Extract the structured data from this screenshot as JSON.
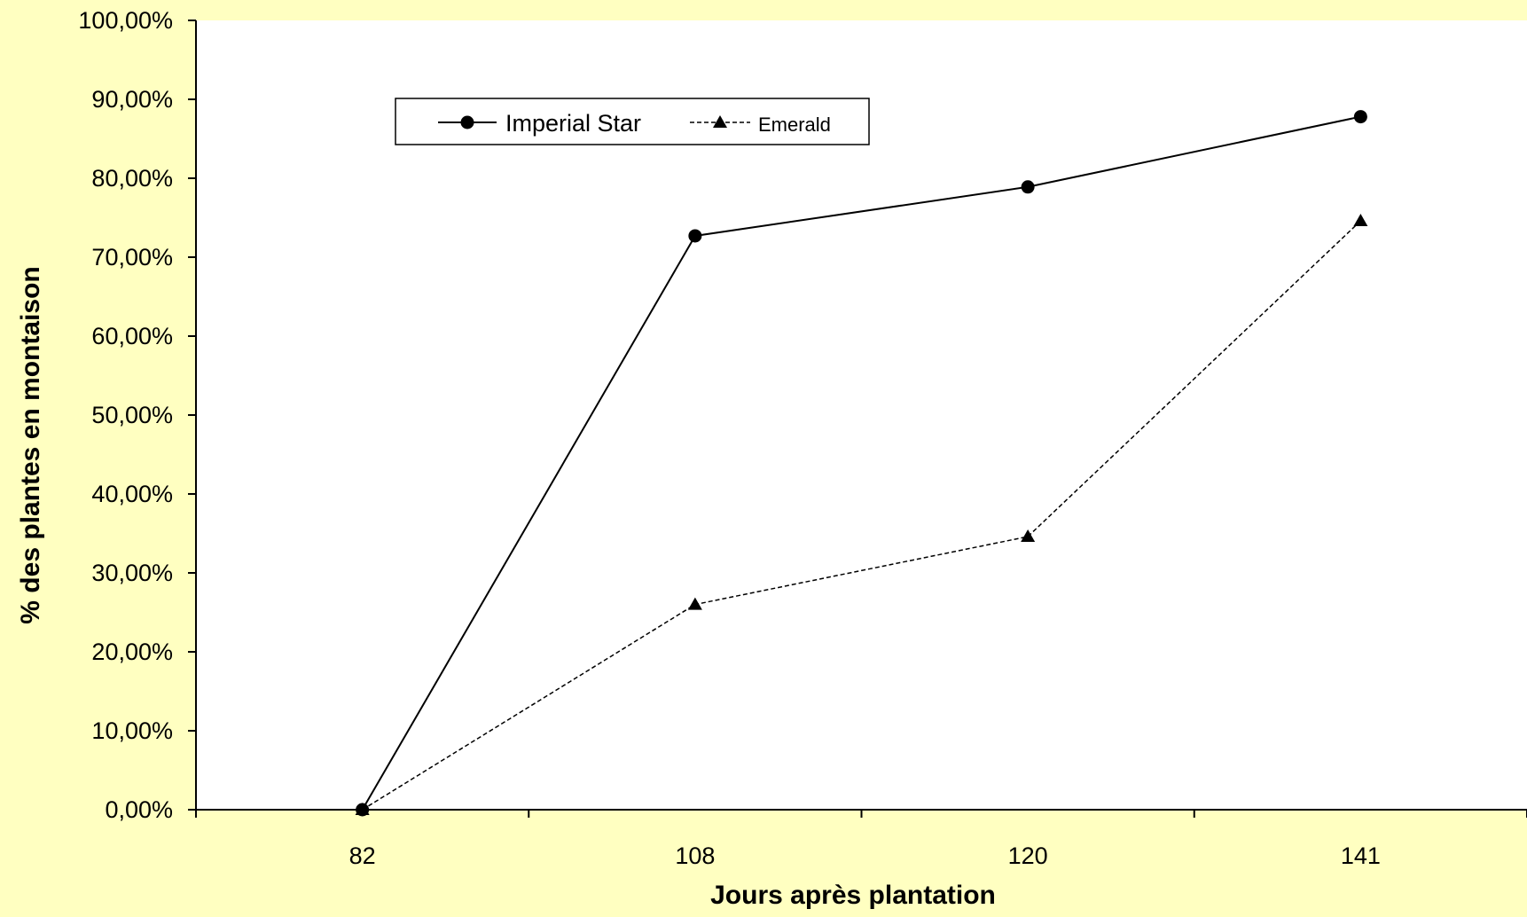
{
  "colors": {
    "background": "#FFFFC1",
    "plot_area": "#FFFFFF",
    "ink": "#000000"
  },
  "chart_data": {
    "type": "line",
    "title": "",
    "xlabel": "Jours après plantation",
    "ylabel": "% des plantes en montaison",
    "categories": [
      "82",
      "108",
      "120",
      "141"
    ],
    "yticks": [
      "0,00%",
      "10,00%",
      "20,00%",
      "30,00%",
      "40,00%",
      "50,00%",
      "60,00%",
      "70,00%",
      "80,00%",
      "90,00%",
      "100,00%"
    ],
    "ylim": [
      0,
      100
    ],
    "grid": false,
    "legend_position": "top-left",
    "series": [
      {
        "name": "Imperial Star",
        "values": [
          0,
          72.7,
          78.9,
          87.8
        ],
        "marker": "circle",
        "line": "solid"
      },
      {
        "name": "Emerald",
        "values": [
          0,
          26.0,
          34.6,
          74.6
        ],
        "marker": "triangle",
        "line": "dashed"
      }
    ]
  }
}
